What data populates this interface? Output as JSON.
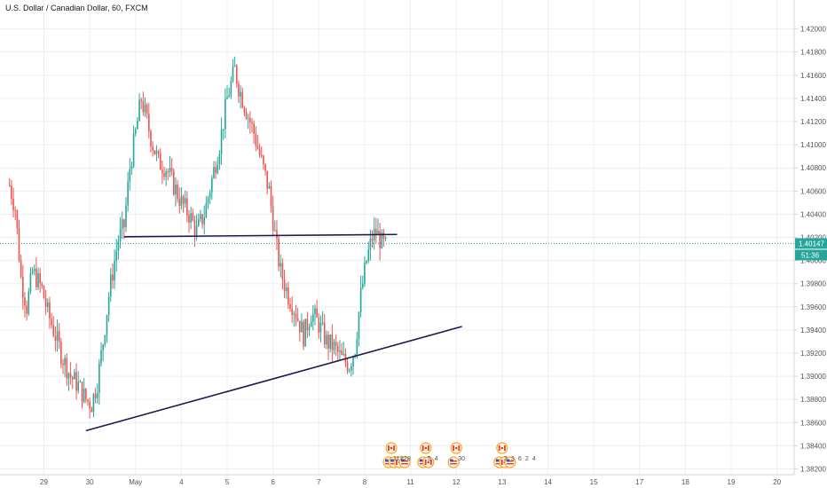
{
  "colors": {
    "up": "#26a69a",
    "down": "#ef5350",
    "grid": "#eceff2",
    "price_line": "#26a69a",
    "trendline": "#1a1a4e",
    "axis_bg": "#ffffff",
    "tag_price": "#26a69a",
    "tag_timer": "#26a69a"
  },
  "chart_data": {
    "type": "candlestick",
    "title": "U.S. Dollar / Canadian Dollar, 60, FXCM",
    "ylim": [
      1.3815,
      1.4225
    ],
    "y_ticks": [
      "1.38200",
      "1.38400",
      "1.38600",
      "1.38800",
      "1.39000",
      "1.39200",
      "1.39400",
      "1.39600",
      "1.39800",
      "1.40000",
      "1.40200",
      "1.40400",
      "1.40600",
      "1.40800",
      "1.41000",
      "1.41200",
      "1.41400",
      "1.41600",
      "1.41800",
      "1.42000"
    ],
    "x_ticks": [
      {
        "label": "29",
        "t": 18
      },
      {
        "label": "30",
        "t": 42
      },
      {
        "label": "May",
        "t": 66
      },
      {
        "label": "4",
        "t": 90
      },
      {
        "label": "5",
        "t": 114
      },
      {
        "label": "6",
        "t": 138
      },
      {
        "label": "7",
        "t": 162
      },
      {
        "label": "8",
        "t": 186
      },
      {
        "label": "11",
        "t": 210
      },
      {
        "label": "12",
        "t": 234
      },
      {
        "label": "13",
        "t": 258
      },
      {
        "label": "14",
        "t": 282
      },
      {
        "label": "15",
        "t": 306
      },
      {
        "label": "17",
        "t": 330
      },
      {
        "label": "18",
        "t": 354
      },
      {
        "label": "19",
        "t": 378
      },
      {
        "label": "20",
        "t": 402
      }
    ],
    "t_range": [
      -5,
      411
    ],
    "current_price": "1.40147",
    "countdown": "51:36",
    "current_price_value": 1.40147,
    "anchors": [
      [
        0,
        1.4065
      ],
      [
        3,
        1.4045
      ],
      [
        6,
        1.3985
      ],
      [
        9,
        1.396
      ],
      [
        12,
        1.399
      ],
      [
        14,
        1.3985
      ],
      [
        17,
        1.3975
      ],
      [
        20,
        1.3955
      ],
      [
        24,
        1.3935
      ],
      [
        28,
        1.3915
      ],
      [
        32,
        1.39
      ],
      [
        36,
        1.3892
      ],
      [
        40,
        1.388
      ],
      [
        43,
        1.3876
      ],
      [
        46,
        1.3895
      ],
      [
        49,
        1.393
      ],
      [
        52,
        1.397
      ],
      [
        55,
        1.4
      ],
      [
        57,
        1.4018
      ],
      [
        60,
        1.403
      ],
      [
        63,
        1.408
      ],
      [
        66,
        1.411
      ],
      [
        69,
        1.414
      ],
      [
        72,
        1.412
      ],
      [
        75,
        1.41
      ],
      [
        78,
        1.4085
      ],
      [
        82,
        1.408
      ],
      [
        86,
        1.4065
      ],
      [
        90,
        1.405
      ],
      [
        94,
        1.404
      ],
      [
        98,
        1.4025
      ],
      [
        102,
        1.404
      ],
      [
        106,
        1.407
      ],
      [
        110,
        1.41
      ],
      [
        114,
        1.414
      ],
      [
        118,
        1.4165
      ],
      [
        120,
        1.415
      ],
      [
        124,
        1.413
      ],
      [
        128,
        1.411
      ],
      [
        132,
        1.4085
      ],
      [
        136,
        1.406
      ],
      [
        140,
        1.401
      ],
      [
        142,
        1.399
      ],
      [
        146,
        1.397
      ],
      [
        150,
        1.3955
      ],
      [
        154,
        1.3935
      ],
      [
        158,
        1.3955
      ],
      [
        162,
        1.3945
      ],
      [
        166,
        1.393
      ],
      [
        170,
        1.3925
      ],
      [
        174,
        1.3915
      ],
      [
        178,
        1.391
      ],
      [
        181,
        1.3925
      ],
      [
        184,
        1.397
      ],
      [
        187,
        1.4
      ],
      [
        190,
        1.402
      ],
      [
        192,
        1.4025
      ],
      [
        195,
        1.4015
      ],
      [
        197,
        1.4012
      ]
    ],
    "trendlines": [
      {
        "name": "resistance",
        "t1": 60,
        "p1": 1.40205,
        "t2": 203,
        "p2": 1.40225
      },
      {
        "name": "support",
        "t1": 40,
        "p1": 1.3853,
        "t2": 237,
        "p2": 1.3943
      }
    ],
    "events": [
      {
        "t": 200,
        "top_flag": "CA",
        "bottom_flags": [
          "US",
          "US",
          "CA",
          "US"
        ],
        "labels": [
          "11",
          "22",
          "8"
        ]
      },
      {
        "t": 218,
        "top_flag": "CA",
        "bottom_flags": [
          "US",
          "CA"
        ],
        "labels": [
          "5",
          "4"
        ]
      },
      {
        "t": 234,
        "top_flag": "CA",
        "bottom_flags": [
          "US"
        ],
        "labels": [
          "30"
        ]
      },
      {
        "t": 258,
        "top_flag": "CA",
        "bottom_flags": [
          "US",
          "CA",
          "US"
        ],
        "labels": [
          "2",
          "3",
          "6",
          "2",
          "4"
        ]
      }
    ]
  }
}
